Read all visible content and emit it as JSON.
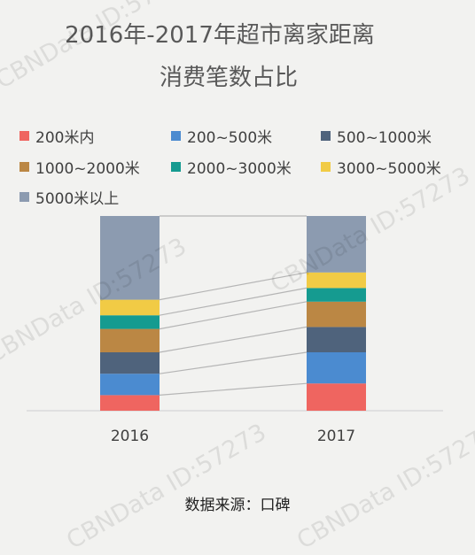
{
  "title": {
    "line1": "2016年-2017年超市离家距离",
    "line2": "消费笔数占比"
  },
  "source": "数据来源：口碑",
  "watermark": "CBNData ID:57273",
  "chart_data": {
    "type": "bar",
    "stacked": true,
    "normalized": true,
    "categories": [
      "2016",
      "2017"
    ],
    "series": [
      {
        "name": "200米内",
        "color": "#ef6560",
        "values": [
          8,
          14
        ]
      },
      {
        "name": "200~500米",
        "color": "#4b8bd0",
        "values": [
          11,
          16
        ]
      },
      {
        "name": "500~1000米",
        "color": "#4f637c",
        "values": [
          11,
          13
        ]
      },
      {
        "name": "1000~2000米",
        "color": "#bb8744",
        "values": [
          12,
          13
        ]
      },
      {
        "name": "2000~3000米",
        "color": "#159b90",
        "values": [
          7,
          7
        ]
      },
      {
        "name": "3000~5000米",
        "color": "#f1cb45",
        "values": [
          8,
          8
        ]
      },
      {
        "name": "5000米以上",
        "color": "#8c9bb0",
        "values": [
          43,
          29
        ]
      }
    ],
    "ylim": [
      0,
      100
    ],
    "legend_position": "top",
    "connector_lines": true
  }
}
